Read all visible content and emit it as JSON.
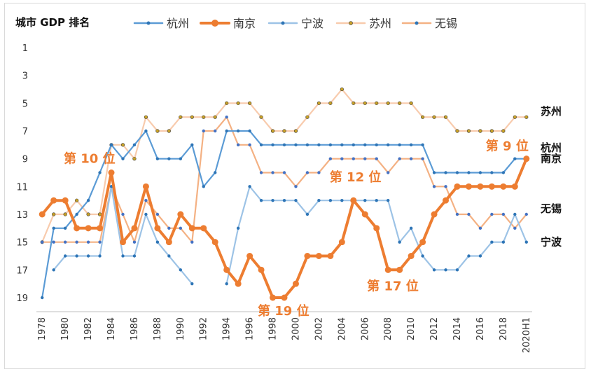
{
  "chart_data": {
    "type": "line",
    "title": "城市 GDP 排名",
    "y_reversed": true,
    "ylim": [
      1,
      19
    ],
    "y_ticks": [
      "1",
      "3",
      "5",
      "7",
      "9",
      "11",
      "13",
      "15",
      "17",
      "19"
    ],
    "x_tick_labels": [
      "1978",
      "1980",
      "1982",
      "1984",
      "1986",
      "1988",
      "1990",
      "1992",
      "1994",
      "1996",
      "1998",
      "2000",
      "2002",
      "2004",
      "2006",
      "2008",
      "2010",
      "2012",
      "2014",
      "2016",
      "2018",
      "2020H1"
    ],
    "x": [
      "1978",
      "1979",
      "1980",
      "1981",
      "1982",
      "1983",
      "1984",
      "1985",
      "1986",
      "1987",
      "1988",
      "1989",
      "1990",
      "1991",
      "1992",
      "1993",
      "1994",
      "1995",
      "1996",
      "1997",
      "1998",
      "1999",
      "2000",
      "2001",
      "2002",
      "2003",
      "2004",
      "2005",
      "2006",
      "2007",
      "2008",
      "2009",
      "2010",
      "2011",
      "2012",
      "2013",
      "2014",
      "2015",
      "2016",
      "2017",
      "2018",
      "2019",
      "2020H1"
    ],
    "legend_position": "top",
    "series": [
      {
        "name": "杭州",
        "color": "#5b9bd5",
        "style": "thin",
        "values": [
          19,
          14,
          14,
          13,
          12,
          10,
          8,
          9,
          8,
          7,
          9,
          9,
          9,
          8,
          11,
          10,
          7,
          7,
          7,
          8,
          8,
          8,
          8,
          8,
          8,
          8,
          8,
          8,
          8,
          8,
          8,
          8,
          8,
          8,
          10,
          10,
          10,
          10,
          10,
          10,
          10,
          9,
          9
        ]
      },
      {
        "name": "南京",
        "color": "#ed7d31",
        "style": "thick",
        "values": [
          13,
          12,
          12,
          14,
          14,
          14,
          10,
          15,
          14,
          11,
          14,
          15,
          13,
          14,
          14,
          15,
          17,
          18,
          16,
          17,
          19,
          19,
          18,
          16,
          16,
          16,
          15,
          12,
          13,
          14,
          17,
          17,
          16,
          15,
          13,
          12,
          11,
          11,
          11,
          11,
          11,
          11,
          9
        ]
      },
      {
        "name": "宁波",
        "color": "#9dc3e6",
        "style": "thin",
        "values": [
          null,
          17,
          16,
          16,
          16,
          16,
          11,
          16,
          16,
          13,
          15,
          16,
          17,
          18,
          null,
          null,
          18,
          14,
          11,
          12,
          12,
          12,
          12,
          13,
          12,
          12,
          12,
          12,
          12,
          12,
          12,
          15,
          14,
          16,
          17,
          17,
          17,
          16,
          16,
          15,
          15,
          13,
          15
        ]
      },
      {
        "name": "苏州",
        "color": "#f8cbad",
        "style": "dotted-marker",
        "values": [
          15,
          13,
          13,
          12,
          13,
          13,
          8,
          8,
          9,
          6,
          7,
          7,
          6,
          6,
          6,
          6,
          5,
          5,
          5,
          6,
          7,
          7,
          7,
          6,
          5,
          5,
          4,
          5,
          5,
          5,
          5,
          5,
          5,
          6,
          6,
          6,
          7,
          7,
          7,
          7,
          7,
          6,
          6
        ]
      },
      {
        "name": "无锡",
        "color": "#f4b183",
        "style": "thin",
        "values": [
          15,
          15,
          15,
          15,
          15,
          15,
          11,
          13,
          15,
          12,
          13,
          14,
          14,
          15,
          7,
          7,
          6,
          8,
          8,
          10,
          10,
          10,
          11,
          10,
          10,
          9,
          9,
          9,
          9,
          9,
          10,
          9,
          9,
          9,
          11,
          11,
          13,
          13,
          14,
          13,
          13,
          14,
          13
        ]
      }
    ],
    "annotations": [
      "第 10 位",
      "第 12 位",
      "第 19 位",
      "第 17 位",
      "第 9 位"
    ],
    "end_labels": [
      "苏州",
      "杭州",
      "南京",
      "无锡",
      "宁波"
    ]
  }
}
